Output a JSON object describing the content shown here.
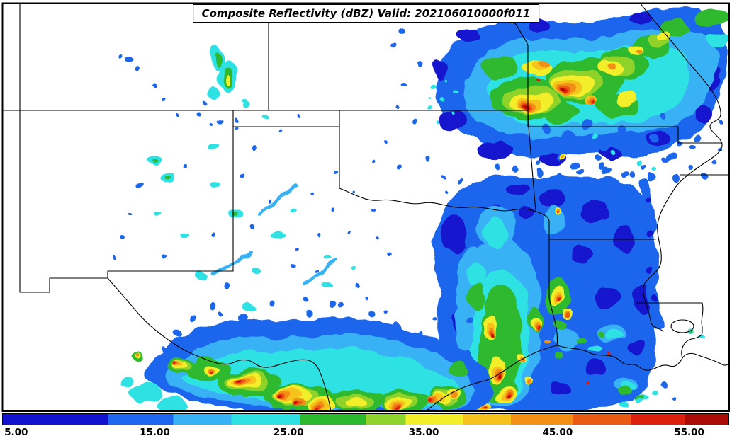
{
  "figure": {
    "title": "Composite Reflectivity (dBZ) Valid: 202106010000f011"
  },
  "colorbar": {
    "unit": "dBZ",
    "ticks": [
      {
        "label": "5.00",
        "pos_pct": 0.3,
        "align": "left"
      },
      {
        "label": "15.00",
        "pos_pct": 21.0,
        "align": "center"
      },
      {
        "label": "25.00",
        "pos_pct": 39.4,
        "align": "center"
      },
      {
        "label": "35.00",
        "pos_pct": 58.0,
        "align": "center"
      },
      {
        "label": "45.00",
        "pos_pct": 76.4,
        "align": "center"
      },
      {
        "label": "55.00",
        "pos_pct": 94.5,
        "align": "center"
      }
    ],
    "segments": [
      {
        "color": "#1212cf",
        "from": 0.0,
        "to": 0.145
      },
      {
        "color": "#1f66ee",
        "from": 0.145,
        "to": 0.235
      },
      {
        "color": "#38b1f5",
        "from": 0.235,
        "to": 0.315
      },
      {
        "color": "#2ee2e4",
        "from": 0.315,
        "to": 0.41
      },
      {
        "color": "#2db92d",
        "from": 0.41,
        "to": 0.5
      },
      {
        "color": "#8fd32c",
        "from": 0.5,
        "to": 0.555
      },
      {
        "color": "#f2ee2a",
        "from": 0.555,
        "to": 0.635
      },
      {
        "color": "#f6c21e",
        "from": 0.635,
        "to": 0.7
      },
      {
        "color": "#f28f15",
        "from": 0.7,
        "to": 0.785
      },
      {
        "color": "#ea5a12",
        "from": 0.785,
        "to": 0.865
      },
      {
        "color": "#dd1f0e",
        "from": 0.865,
        "to": 0.94
      },
      {
        "color": "#a90d06",
        "from": 0.94,
        "to": 1.0
      }
    ]
  }
}
